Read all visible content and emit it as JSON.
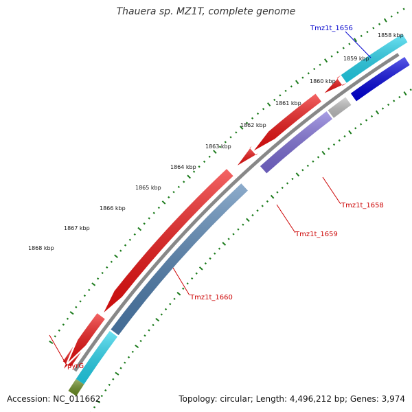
{
  "title": "Thauera sp. MZ1T, complete genome",
  "footer": {
    "accession": "Accession: NC_011662",
    "summary": "Topology: circular; Length: 4,496,212 bp; Genes: 3,974"
  },
  "ticks": [
    "1858 kbp",
    "1859 kbp",
    "1860 kbp",
    "1861 kbp",
    "1862 kbp",
    "1863 kbp",
    "1864 kbp",
    "1865 kbp",
    "1866 kbp",
    "1867 kbp",
    "1868 kbp"
  ],
  "gene_labels": [
    {
      "name": "Tmz1t_1656",
      "color": "#0000cc"
    },
    {
      "name": "Tmz1t_1658",
      "color": "#cc0000"
    },
    {
      "name": "Tmz1t_1659",
      "color": "#cc0000"
    },
    {
      "name": "Tmz1t_1660",
      "color": "#cc0000"
    },
    {
      "name": "pyrG",
      "color": "#cc0000"
    }
  ],
  "colors": {
    "backbone": "#888888",
    "cds_red": "#ee1111",
    "cds_blue": "#4f7fb0",
    "cds_cyan": "#22d4ee",
    "cds_darkblue": "#0000dd",
    "cds_purple": "#7b6bd6",
    "cds_grey": "#c0c0c0",
    "cds_green": "#6b8e23",
    "tick": "#1a7a1a"
  }
}
